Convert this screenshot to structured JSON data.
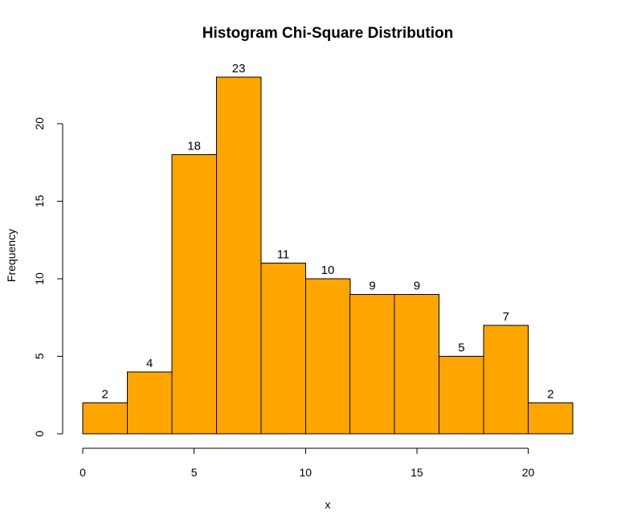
{
  "chart_data": {
    "type": "bar",
    "title": "Histogram Chi-Square Distribution",
    "xlabel": "x",
    "ylabel": "Frequency",
    "bin_edges": [
      0,
      2,
      4,
      6,
      8,
      10,
      12,
      14,
      16,
      18,
      20,
      22
    ],
    "values": [
      2,
      4,
      18,
      23,
      11,
      10,
      9,
      9,
      5,
      7,
      2
    ],
    "data_labels": [
      "2",
      "4",
      "18",
      "23",
      "11",
      "10",
      "9",
      "9",
      "5",
      "7",
      "2"
    ],
    "xlim": [
      0,
      22
    ],
    "ylim": [
      0,
      23
    ],
    "x_ticks": [
      0,
      5,
      10,
      15,
      20
    ],
    "x_tick_labels": [
      "0",
      "5",
      "10",
      "15",
      "20"
    ],
    "y_ticks": [
      0,
      5,
      10,
      15,
      20
    ],
    "y_tick_labels": [
      "0",
      "5",
      "10",
      "15",
      "20"
    ],
    "bar_color": "#FFA500",
    "grid": false
  }
}
